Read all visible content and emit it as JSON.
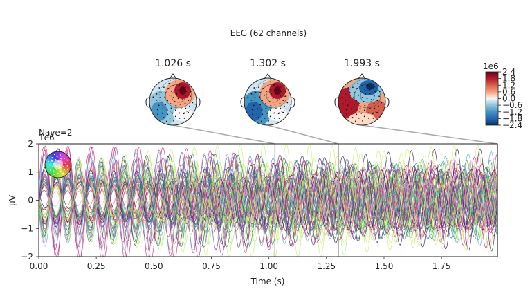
{
  "figure": {
    "title": "EEG (62 channels)"
  },
  "topomaps": [
    {
      "time_label": "1.026 s",
      "time": 1.026,
      "accent": "upper-right-positive"
    },
    {
      "time_label": "1.302 s",
      "time": 1.302,
      "accent": "upper-right-positive"
    },
    {
      "time_label": "1.993 s",
      "time": 1.993,
      "accent": "upper-negative"
    }
  ],
  "colorbar": {
    "scale_label": "1e6",
    "ticks": [
      "2.4",
      "1.8",
      "1.2",
      "0.6",
      "0.0",
      "−0.6",
      "−1.2",
      "−1.8",
      "−2.4"
    ],
    "tick_values": [
      2.4,
      1.8,
      1.2,
      0.6,
      0.0,
      -0.6,
      -1.2,
      -1.8,
      -2.4
    ],
    "cmap": "RdBu_r"
  },
  "chart_data": {
    "type": "line",
    "title": "EEG (62 channels)",
    "annotation": "Nave=2",
    "offset_label": "1e6",
    "xlabel": "Time (s)",
    "ylabel": "µV",
    "xlim": [
      0,
      1.993
    ],
    "ylim": [
      -2,
      2
    ],
    "xticks": [
      "0.00",
      "0.25",
      "0.50",
      "0.75",
      "1.00",
      "1.25",
      "1.50",
      "1.75"
    ],
    "xtick_values": [
      0,
      0.25,
      0.5,
      0.75,
      1.0,
      1.25,
      1.5,
      1.75
    ],
    "yticks": [
      "−2",
      "−1",
      "0",
      "1",
      "2"
    ],
    "ytick_values": [
      -2,
      -1,
      0,
      1,
      2
    ],
    "channel_count": 62,
    "approx_frequency_hz": 10,
    "approx_peak_amplitude": 1.6,
    "time_markers": [
      1.026,
      1.302,
      1.993
    ],
    "colors": {
      "spectrum": [
        "#c8f06e",
        "#b5e65a",
        "#d4d4a0",
        "#cc2b7a",
        "#e0569a",
        "#9b1f6e",
        "#3b1a5a",
        "#2e7d6a",
        "#7a4fb0",
        "#5fa0d8",
        "#1fa07a",
        "#f0a0c8"
      ],
      "marker_line": "#aaaaaa"
    }
  }
}
